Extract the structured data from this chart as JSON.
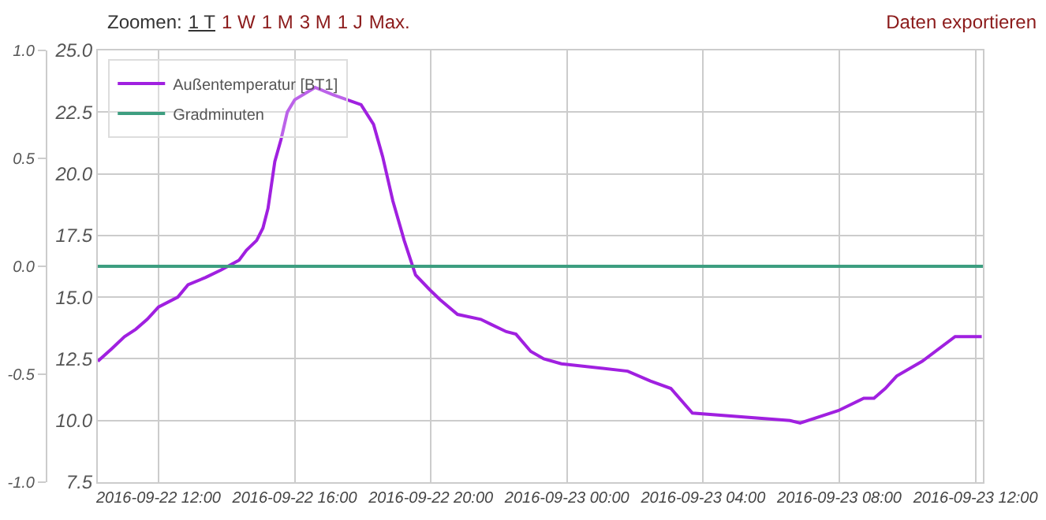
{
  "chart_data": {
    "type": "line",
    "annotations": [
      "Zoomen:",
      "1 T",
      "1 W",
      "1 M",
      "3 M",
      "1 J",
      "Max.",
      "Daten exportieren"
    ],
    "xlim": [
      "2016-09-22T10:13",
      "2016-09-23T12:13"
    ],
    "xticks": [
      {
        "value": "2016-09-22T12:00",
        "label": "2016-09-22 12:00"
      },
      {
        "value": "2016-09-22T16:00",
        "label": "2016-09-22 16:00"
      },
      {
        "value": "2016-09-22T20:00",
        "label": "2016-09-22 20:00"
      },
      {
        "value": "2016-09-23T00:00",
        "label": "2016-09-23 00:00"
      },
      {
        "value": "2016-09-23T04:00",
        "label": "2016-09-23 04:00"
      },
      {
        "value": "2016-09-23T08:00",
        "label": "2016-09-23 08:00"
      },
      {
        "value": "2016-09-23T12:00",
        "label": "2016-09-23 12:00"
      }
    ],
    "ylim": [
      7.5,
      25
    ],
    "yticks": [
      7.5,
      {
        "value": 10,
        "label": "10.0"
      },
      12.5,
      {
        "value": 15,
        "label": "15.0"
      },
      17.5,
      {
        "value": 20,
        "label": "20.0"
      },
      22.5,
      {
        "value": 25,
        "label": "25.0"
      }
    ],
    "y2lim": [
      -1,
      1
    ],
    "y2ticks": [
      {
        "value": -1,
        "label": "-1.0"
      },
      -0.5,
      {
        "value": 0,
        "label": "0.0"
      },
      0.5,
      {
        "value": 1,
        "label": "1.0"
      }
    ],
    "grid": true,
    "legend": "top left",
    "line_style": "solid",
    "series": [
      {
        "name": "Außentemperatur [BT1]",
        "color": "#a020e0",
        "x": [
          "2016-09-22T10:13",
          "2016-09-22T10:37",
          "2016-09-22T11:00",
          "2016-09-22T11:20",
          "2016-09-22T11:40",
          "2016-09-22T12:00",
          "2016-09-22T12:34",
          "2016-09-22T12:52",
          "2016-09-22T13:23",
          "2016-09-22T13:50",
          "2016-09-22T14:22",
          "2016-09-22T14:35",
          "2016-09-22T14:53",
          "2016-09-22T15:04",
          "2016-09-22T15:13",
          "2016-09-22T15:25",
          "2016-09-22T15:36",
          "2016-09-22T15:47",
          "2016-09-22T16:00",
          "2016-09-22T16:36",
          "2016-09-22T17:08",
          "2016-09-22T17:57",
          "2016-09-22T18:19",
          "2016-09-22T18:35",
          "2016-09-22T18:53",
          "2016-09-22T19:13",
          "2016-09-22T19:33",
          "2016-09-22T19:58",
          "2016-09-22T20:16",
          "2016-09-22T20:47",
          "2016-09-22T21:28",
          "2016-09-22T21:46",
          "2016-09-22T22:13",
          "2016-09-22T22:30",
          "2016-09-22T22:56",
          "2016-09-22T23:19",
          "2016-09-22T23:50",
          "2016-09-23T01:47",
          "2016-09-23T02:27",
          "2016-09-23T03:03",
          "2016-09-23T03:41",
          "2016-09-23T06:33",
          "2016-09-23T06:51",
          "2016-09-23T07:58",
          "2016-09-23T08:43",
          "2016-09-23T09:01",
          "2016-09-23T09:21",
          "2016-09-23T09:41",
          "2016-09-23T10:26",
          "2016-09-23T11:24",
          "2016-09-23T12:11"
        ],
        "values": [
          12.4,
          12.9,
          13.4,
          13.7,
          14.1,
          14.6,
          15.0,
          15.5,
          15.8,
          16.1,
          16.5,
          16.9,
          17.3,
          17.8,
          18.6,
          20.5,
          21.4,
          22.5,
          23.0,
          23.5,
          23.2,
          22.8,
          22.0,
          20.7,
          18.9,
          17.3,
          15.9,
          15.3,
          14.9,
          14.3,
          14.1,
          13.9,
          13.6,
          13.5,
          12.8,
          12.5,
          12.3,
          12.0,
          11.6,
          11.3,
          10.3,
          10.0,
          9.9,
          10.4,
          10.9,
          10.9,
          11.3,
          11.8,
          12.4,
          13.4,
          13.4
        ]
      },
      {
        "name": "Gradminuten",
        "color": "#3d9e80",
        "axis": "y2",
        "x": [
          "2016-09-22T10:13",
          "2016-09-23T12:13"
        ],
        "values": [
          0,
          0
        ]
      }
    ]
  }
}
